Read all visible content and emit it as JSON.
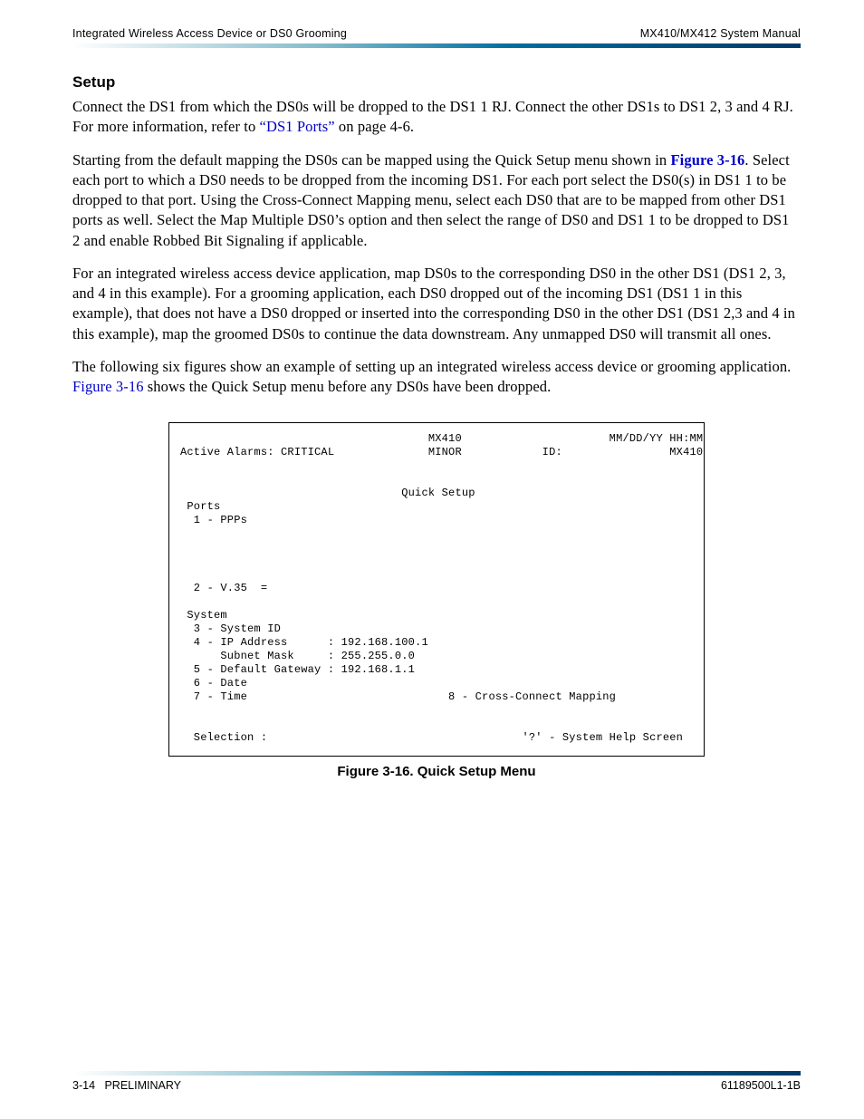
{
  "header": {
    "left": "Integrated Wireless Access Device or DS0 Grooming",
    "right": "MX410/MX412 System Manual"
  },
  "section": {
    "heading": "Setup",
    "para1_pre": "Connect the DS1 from which the DS0s will be dropped to the DS1 1 RJ. Connect the other DS1s to DS1 2, 3 and 4 RJ. For more information, refer to ",
    "para1_link": "“DS1 Ports”",
    "para1_post": " on page 4-6.",
    "para2_pre": "Starting from the default mapping the DS0s can be mapped using the Quick Setup menu shown in ",
    "para2_link": "Figure 3-16",
    "para2_post": ". Select each port to which a DS0 needs to be dropped from the incoming DS1. For each port select the DS0(s) in DS1 1 to be dropped to that port. Using the Cross-Connect Mapping menu, select each DS0 that are to be mapped from other DS1 ports as well. Select the Map Multiple DS0’s option and then select the range of DS0 and DS1 1 to be dropped to DS1 2 and enable Robbed Bit Signaling if applicable.",
    "para3": "For an integrated wireless access device application, map DS0s to the corresponding DS0 in the other DS1 (DS1 2, 3, and 4 in this example). For a grooming application, each DS0 dropped out of the incoming DS1 (DS1 1 in this example), that does not have a DS0 dropped or inserted into the corresponding DS0 in the other DS1 (DS1 2,3 and 4 in this example), map the groomed DS0s to continue the data downstream. Any unmapped DS0 will transmit all ones.",
    "para4_pre": "The following six figures show an example of setting up an integrated wireless access device or grooming application. ",
    "para4_link": "Figure 3-16",
    "para4_post": " shows the Quick Setup menu before any DS0s have been dropped."
  },
  "figure": {
    "caption": "Figure 3-16.  Quick Setup Menu",
    "terminal": {
      "device": "MX410",
      "datetime": "MM/DD/YY HH:MM",
      "alarms_label": "Active Alarms:",
      "alarms_crit": "CRITICAL",
      "alarms_minor": "MINOR",
      "id_label": "ID:",
      "id_value": "MX410",
      "title": "Quick Setup",
      "ports_label": "Ports",
      "item1": "1 - PPPs",
      "item2": "2 - V.35  =",
      "system_label": "System",
      "item3": "3 - System ID",
      "item4_label": "4 - IP Address",
      "item4_value": "192.168.100.1",
      "subnet_label": "Subnet Mask",
      "subnet_value": "255.255.0.0",
      "item5_label": "5 - Default Gateway",
      "item5_value": "192.168.1.1",
      "item6": "6 - Date",
      "item7": "7 - Time",
      "item8": "8 - Cross-Connect Mapping",
      "selection": "Selection :",
      "help": "'?' - System Help Screen"
    }
  },
  "footer": {
    "left_page": "3-14",
    "left_label": "PRELIMINARY",
    "right": "61189500L1-1B"
  }
}
